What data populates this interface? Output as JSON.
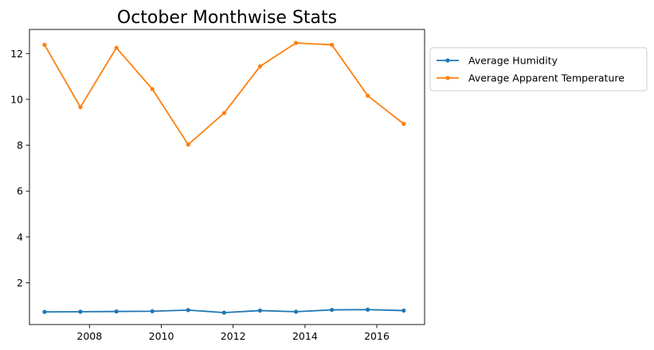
{
  "chart_data": {
    "type": "line",
    "title": "October Monthwise Stats",
    "xlabel": "",
    "ylabel": "",
    "xlim": [
      "2006-05-01",
      "2017-05-01"
    ],
    "ylim": [
      0.18,
      13.05
    ],
    "x": [
      "2006-10-01",
      "2007-10-01",
      "2008-10-01",
      "2009-10-01",
      "2010-10-01",
      "2011-10-01",
      "2012-10-01",
      "2013-10-01",
      "2014-10-01",
      "2015-10-01",
      "2016-10-01"
    ],
    "xticks": [
      {
        "label": "2008",
        "date": "2008-01-01"
      },
      {
        "label": "2010",
        "date": "2010-01-01"
      },
      {
        "label": "2012",
        "date": "2012-01-01"
      },
      {
        "label": "2014",
        "date": "2014-01-01"
      },
      {
        "label": "2016",
        "date": "2016-01-01"
      }
    ],
    "yticks": [
      2,
      4,
      6,
      8,
      10,
      12
    ],
    "grid": false,
    "legend_position": "outside-right-top",
    "series": [
      {
        "name": "Average Humidity",
        "color": "#1f77b4",
        "values": [
          0.73,
          0.74,
          0.75,
          0.76,
          0.81,
          0.7,
          0.79,
          0.74,
          0.82,
          0.83,
          0.79
        ]
      },
      {
        "name": "Average Apparent Temperature",
        "color": "#ff7f0e",
        "values": [
          12.38,
          9.66,
          12.25,
          10.45,
          8.03,
          9.4,
          11.44,
          12.46,
          12.38,
          10.16,
          8.93
        ]
      }
    ]
  }
}
